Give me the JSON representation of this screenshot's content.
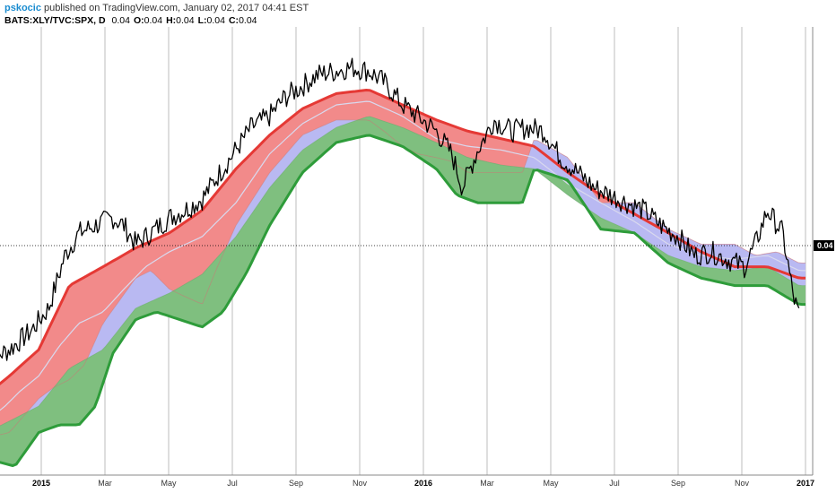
{
  "header": {
    "author": "pskocic",
    "published": "published on TradingView.com, January 02, 2017 04:41 EST",
    "symbol": "BATS:XLY/TVC:SPX, D",
    "last_value": "0.04",
    "open_label": "O:",
    "open_value": "0.04",
    "high_label": "H:",
    "high_value": "0.04",
    "low_label": "L:",
    "low_value": "0.04",
    "close_label": "C:",
    "close_value": "0.04"
  },
  "price_label": "0.04",
  "chart_data": {
    "type": "line",
    "x_ticks": [
      "2015",
      "Mar",
      "May",
      "Jul",
      "Sep",
      "Nov",
      "2016",
      "Mar",
      "May",
      "Jul",
      "Sep",
      "Nov",
      "2017"
    ],
    "x_ticks_bold": [
      "2015",
      "2016",
      "2017"
    ],
    "x_range": [
      "2014-12-15",
      "2017-01-05"
    ],
    "y_range": [
      0.0,
      1.0
    ],
    "y_axis_labels": false,
    "grid": "vertical",
    "colors": {
      "upper_band": "#e53935",
      "upper_fill": "#f28a8a",
      "middle_fill": "#b9b9f2",
      "lower_band": "#2e9c3a",
      "lower_fill": "#7fbf7f",
      "price_line": "#000000",
      "price_box": "#000000",
      "grid": "#a0a0a0"
    },
    "series": [
      {
        "points": [
          [
            "2014-12-15",
            0.22
          ],
          [
            "2015-01-05",
            0.25
          ],
          [
            "2015-01-25",
            0.3
          ],
          [
            "2015-02-10",
            0.36
          ],
          [
            "2015-02-25",
            0.5
          ],
          [
            "2015-03-10",
            0.56
          ],
          [
            "2015-03-25",
            0.58
          ],
          [
            "2015-04-10",
            0.6
          ],
          [
            "2015-04-20",
            0.58
          ],
          [
            "2015-05-01",
            0.53
          ],
          [
            "2015-05-15",
            0.56
          ],
          [
            "2015-06-01",
            0.6
          ],
          [
            "2015-06-15",
            0.62
          ],
          [
            "2015-07-01",
            0.65
          ],
          [
            "2015-07-15",
            0.71
          ],
          [
            "2015-08-01",
            0.78
          ],
          [
            "2015-08-15",
            0.84
          ],
          [
            "2015-09-01",
            0.87
          ],
          [
            "2015-09-15",
            0.92
          ],
          [
            "2015-10-01",
            0.95
          ],
          [
            "2015-10-15",
            0.98
          ],
          [
            "2015-11-01",
            0.99
          ],
          [
            "2015-11-15",
            1.0
          ],
          [
            "2015-12-01",
            0.99
          ],
          [
            "2015-12-15",
            0.96
          ],
          [
            "2016-01-01",
            0.9
          ],
          [
            "2016-01-15",
            0.87
          ],
          [
            "2016-02-01",
            0.83
          ],
          [
            "2016-02-15",
            0.77
          ],
          [
            "2016-02-25",
            0.68
          ],
          [
            "2016-03-10",
            0.78
          ],
          [
            "2016-03-25",
            0.86
          ],
          [
            "2016-04-10",
            0.83
          ],
          [
            "2016-04-25",
            0.84
          ],
          [
            "2016-05-10",
            0.83
          ],
          [
            "2016-05-25",
            0.76
          ],
          [
            "2016-06-10",
            0.72
          ],
          [
            "2016-06-25",
            0.68
          ],
          [
            "2016-07-10",
            0.66
          ],
          [
            "2016-07-25",
            0.64
          ],
          [
            "2016-08-10",
            0.62
          ],
          [
            "2016-08-25",
            0.58
          ],
          [
            "2016-09-10",
            0.55
          ],
          [
            "2016-09-25",
            0.5
          ],
          [
            "2016-10-10",
            0.51
          ],
          [
            "2016-10-25",
            0.49
          ],
          [
            "2016-11-10",
            0.47
          ],
          [
            "2016-11-20",
            0.53
          ],
          [
            "2016-12-01",
            0.62
          ],
          [
            "2016-12-15",
            0.56
          ],
          [
            "2016-12-25",
            0.39
          ],
          [
            "2016-12-30",
            0.34
          ]
        ]
      },
      {
        "points": [
          [
            "2014-12-15",
            0.13
          ],
          [
            "2015-01-05",
            0.18
          ],
          [
            "2015-02-01",
            0.25
          ],
          [
            "2015-03-01",
            0.42
          ],
          [
            "2015-04-01",
            0.47
          ],
          [
            "2015-05-01",
            0.52
          ],
          [
            "2015-06-01",
            0.56
          ],
          [
            "2015-07-01",
            0.62
          ],
          [
            "2015-08-01",
            0.73
          ],
          [
            "2015-09-01",
            0.82
          ],
          [
            "2015-10-01",
            0.89
          ],
          [
            "2015-11-01",
            0.93
          ],
          [
            "2015-12-01",
            0.94
          ],
          [
            "2016-01-01",
            0.9
          ],
          [
            "2016-02-01",
            0.86
          ],
          [
            "2016-03-01",
            0.83
          ],
          [
            "2016-04-01",
            0.81
          ],
          [
            "2016-05-01",
            0.79
          ],
          [
            "2016-06-01",
            0.72
          ],
          [
            "2016-07-01",
            0.66
          ],
          [
            "2016-08-01",
            0.61
          ],
          [
            "2016-09-01",
            0.56
          ],
          [
            "2016-10-01",
            0.51
          ],
          [
            "2016-11-01",
            0.47
          ],
          [
            "2016-12-01",
            0.47
          ],
          [
            "2016-12-30",
            0.44
          ]
        ]
      },
      {
        "points": [
          [
            "2014-12-15",
            0.015
          ],
          [
            "2015-01-05",
            0.03
          ],
          [
            "2015-02-01",
            0.12
          ],
          [
            "2015-02-15",
            0.15
          ],
          [
            "2015-03-01",
            0.17
          ],
          [
            "2015-03-15",
            0.21
          ],
          [
            "2015-04-01",
            0.32
          ],
          [
            "2015-05-01",
            0.44
          ],
          [
            "2015-05-15",
            0.46
          ],
          [
            "2015-06-01",
            0.41
          ],
          [
            "2015-07-01",
            0.37
          ],
          [
            "2015-07-15",
            0.47
          ],
          [
            "2015-08-01",
            0.58
          ],
          [
            "2015-09-01",
            0.72
          ],
          [
            "2015-10-01",
            0.82
          ],
          [
            "2015-11-01",
            0.86
          ],
          [
            "2015-12-01",
            0.86
          ],
          [
            "2015-12-15",
            0.83
          ],
          [
            "2016-01-01",
            0.79
          ],
          [
            "2016-01-15",
            0.77
          ],
          [
            "2016-02-01",
            0.76
          ],
          [
            "2016-02-15",
            0.75
          ],
          [
            "2016-03-01",
            0.72
          ],
          [
            "2016-04-01",
            0.72
          ],
          [
            "2016-04-20",
            0.72
          ],
          [
            "2016-05-01",
            0.81
          ],
          [
            "2016-06-01",
            0.76
          ],
          [
            "2016-07-01",
            0.64
          ],
          [
            "2016-08-01",
            0.64
          ],
          [
            "2016-09-01",
            0.57
          ],
          [
            "2016-10-01",
            0.53
          ],
          [
            "2016-11-01",
            0.53
          ],
          [
            "2016-11-20",
            0.5
          ],
          [
            "2016-12-10",
            0.51
          ],
          [
            "2016-12-30",
            0.48
          ]
        ]
      },
      {
        "points": [
          [
            "2014-12-15",
            0.06
          ],
          [
            "2015-01-01",
            0.1
          ],
          [
            "2015-01-15",
            0.14
          ],
          [
            "2015-02-01",
            0.18
          ],
          [
            "2015-02-20",
            0.26
          ],
          [
            "2015-03-10",
            0.32
          ],
          [
            "2015-04-01",
            0.35
          ],
          [
            "2015-04-20",
            0.41
          ],
          [
            "2015-05-10",
            0.47
          ],
          [
            "2015-06-01",
            0.51
          ],
          [
            "2015-07-01",
            0.55
          ],
          [
            "2015-08-01",
            0.64
          ],
          [
            "2015-09-01",
            0.77
          ],
          [
            "2015-10-01",
            0.85
          ],
          [
            "2015-11-01",
            0.9
          ],
          [
            "2015-12-01",
            0.91
          ],
          [
            "2016-01-01",
            0.87
          ],
          [
            "2016-02-01",
            0.81
          ],
          [
            "2016-03-01",
            0.79
          ],
          [
            "2016-04-01",
            0.78
          ],
          [
            "2016-05-01",
            0.76
          ],
          [
            "2016-06-01",
            0.69
          ],
          [
            "2016-07-01",
            0.64
          ],
          [
            "2016-08-01",
            0.59
          ],
          [
            "2016-09-01",
            0.53
          ],
          [
            "2016-10-01",
            0.5
          ],
          [
            "2016-11-01",
            0.49
          ],
          [
            "2016-12-01",
            0.5
          ],
          [
            "2016-12-30",
            0.46
          ]
        ]
      },
      {
        "points": [
          [
            "2014-12-15",
            0.03
          ],
          [
            "2015-01-05",
            0.06
          ],
          [
            "2015-02-01",
            0.1
          ],
          [
            "2015-03-01",
            0.2
          ],
          [
            "2015-04-01",
            0.25
          ],
          [
            "2015-05-01",
            0.36
          ],
          [
            "2015-06-01",
            0.4
          ],
          [
            "2015-07-01",
            0.45
          ],
          [
            "2015-08-01",
            0.55
          ],
          [
            "2015-09-01",
            0.68
          ],
          [
            "2015-10-01",
            0.78
          ],
          [
            "2015-11-01",
            0.84
          ],
          [
            "2015-12-01",
            0.87
          ],
          [
            "2016-01-01",
            0.84
          ],
          [
            "2016-02-01",
            0.8
          ],
          [
            "2016-03-01",
            0.76
          ],
          [
            "2016-04-01",
            0.74
          ],
          [
            "2016-05-01",
            0.73
          ],
          [
            "2016-06-01",
            0.66
          ],
          [
            "2016-07-01",
            0.6
          ],
          [
            "2016-08-01",
            0.56
          ],
          [
            "2016-09-01",
            0.5
          ],
          [
            "2016-10-01",
            0.47
          ],
          [
            "2016-11-01",
            0.46
          ],
          [
            "2016-12-01",
            0.47
          ],
          [
            "2016-12-30",
            0.42
          ]
        ]
      },
      {
        "points": [
          [
            "2014-12-15",
            -0.04
          ],
          [
            "2015-01-10",
            -0.06
          ],
          [
            "2015-02-01",
            0.03
          ],
          [
            "2015-02-20",
            0.05
          ],
          [
            "2015-03-10",
            0.05
          ],
          [
            "2015-03-25",
            0.1
          ],
          [
            "2015-04-10",
            0.24
          ],
          [
            "2015-05-01",
            0.33
          ],
          [
            "2015-05-20",
            0.35
          ],
          [
            "2015-06-10",
            0.33
          ],
          [
            "2015-07-01",
            0.31
          ],
          [
            "2015-07-20",
            0.35
          ],
          [
            "2015-08-10",
            0.45
          ],
          [
            "2015-09-01",
            0.58
          ],
          [
            "2015-10-01",
            0.72
          ],
          [
            "2015-11-01",
            0.8
          ],
          [
            "2015-12-01",
            0.82
          ],
          [
            "2016-01-01",
            0.79
          ],
          [
            "2016-02-01",
            0.73
          ],
          [
            "2016-02-20",
            0.66
          ],
          [
            "2016-03-10",
            0.64
          ],
          [
            "2016-04-01",
            0.64
          ],
          [
            "2016-04-20",
            0.64
          ],
          [
            "2016-05-01",
            0.73
          ],
          [
            "2016-06-01",
            0.7
          ],
          [
            "2016-07-01",
            0.57
          ],
          [
            "2016-08-01",
            0.56
          ],
          [
            "2016-09-01",
            0.48
          ],
          [
            "2016-10-01",
            0.44
          ],
          [
            "2016-11-01",
            0.42
          ],
          [
            "2016-12-01",
            0.42
          ],
          [
            "2016-12-30",
            0.37
          ]
        ]
      }
    ]
  }
}
